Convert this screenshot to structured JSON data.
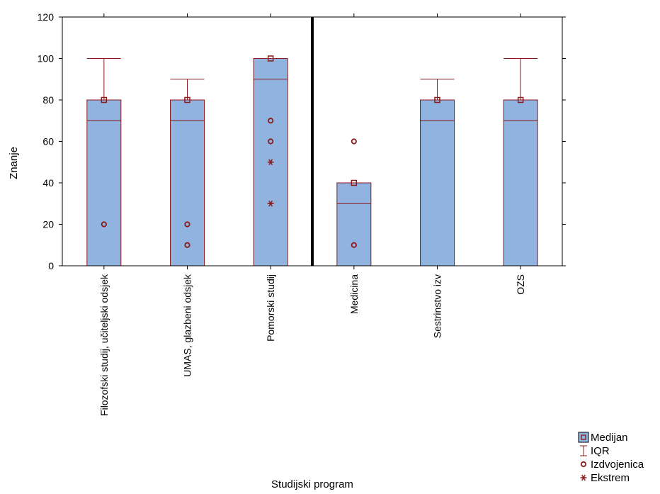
{
  "chart_data": {
    "type": "box",
    "title": "",
    "xlabel": "Studijski program",
    "ylabel": "Znanje",
    "ylim": [
      0,
      120
    ],
    "yticks": [
      0,
      20,
      40,
      60,
      80,
      100,
      120
    ],
    "grid": false,
    "legend_position": "bottom-right",
    "separator_after_category": 3,
    "categories": [
      "Filozofski studij, učiteljski odsjek",
      "UMAS, glazbeni odsjek",
      "Pomorski studij",
      "Medicina",
      "Sestrinstvo izv",
      "OZS"
    ],
    "boxes": [
      {
        "category": "Filozofski studij, učiteljski odsjek",
        "median": 80,
        "q1": 70,
        "q3": 80,
        "whisker_low": 70,
        "whisker_high": 100,
        "outliers": [
          20
        ],
        "extremes": []
      },
      {
        "category": "UMAS, glazbeni odsjek",
        "median": 80,
        "q1": 70,
        "q3": 80,
        "whisker_low": 70,
        "whisker_high": 90,
        "outliers": [
          20,
          10
        ],
        "extremes": []
      },
      {
        "category": "Pomorski studij",
        "median": 100,
        "q1": 90,
        "q3": 100,
        "whisker_low": 90,
        "whisker_high": 100,
        "outliers": [
          70,
          60
        ],
        "extremes": [
          50,
          30
        ]
      },
      {
        "category": "Medicina",
        "median": 40,
        "q1": 30,
        "q3": 40,
        "whisker_low": 30,
        "whisker_high": 40,
        "outliers": [
          60,
          10
        ],
        "extremes": []
      },
      {
        "category": "Sestrinstvo izv",
        "median": 80,
        "q1": 70,
        "q3": 80,
        "whisker_low": 70,
        "whisker_high": 90,
        "outliers": [],
        "extremes": []
      },
      {
        "category": "OZS",
        "median": 80,
        "q1": 70,
        "q3": 80,
        "whisker_low": 70,
        "whisker_high": 100,
        "outliers": [],
        "extremes": []
      }
    ],
    "legend": [
      {
        "key": "median",
        "label": "Medijan"
      },
      {
        "key": "iqr",
        "label": "IQR"
      },
      {
        "key": "outlier",
        "label": "Izdvojenica"
      },
      {
        "key": "extreme",
        "label": "Ekstrem"
      }
    ],
    "colors": {
      "box_fill": "#91b3e0",
      "marker_color": "#8b1a1a",
      "axis_color": "#000000",
      "separator_color": "#000000"
    }
  }
}
